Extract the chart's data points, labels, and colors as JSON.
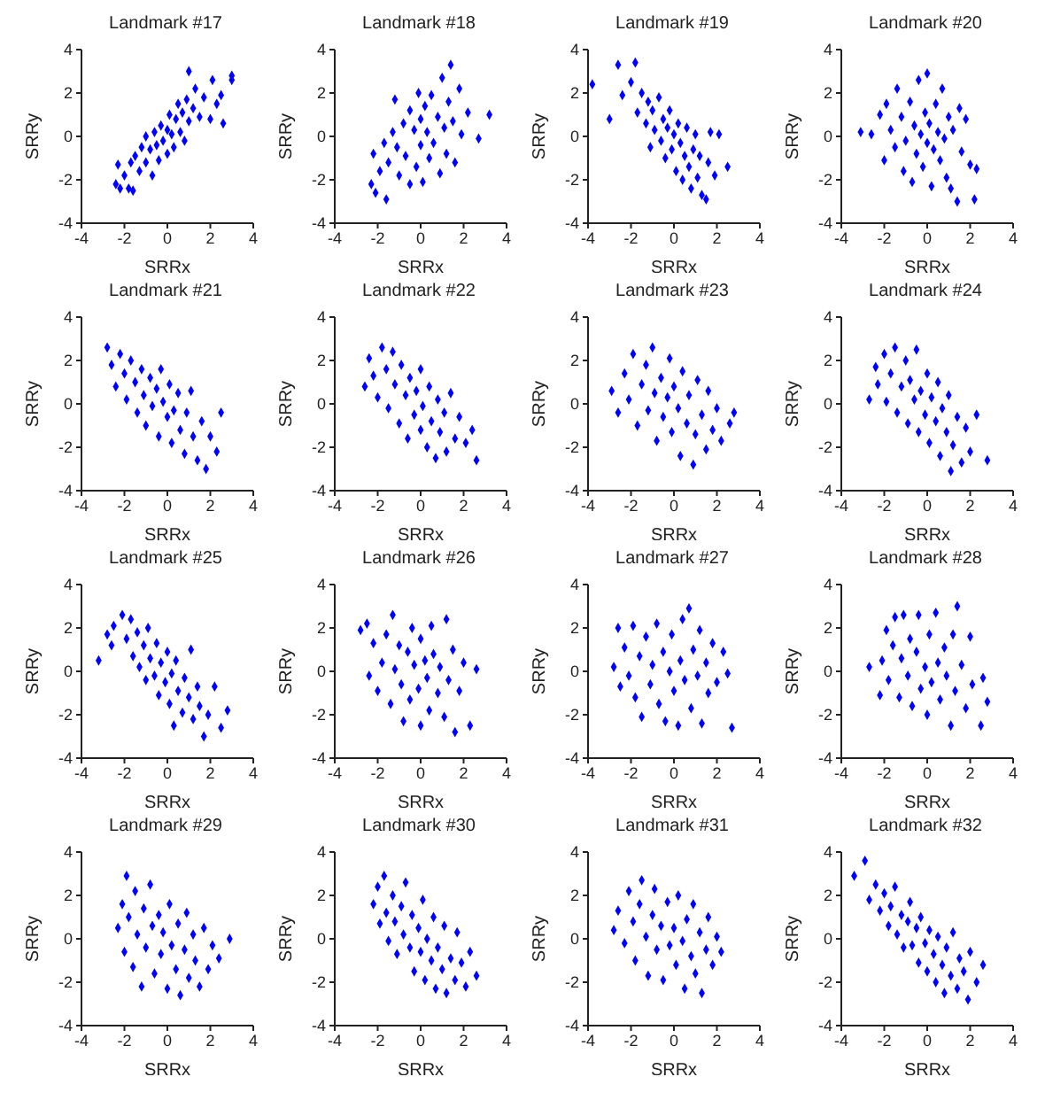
{
  "chart_data": [
    {
      "type": "scatter",
      "title": "Landmark #17",
      "xlabel": "SRRx",
      "ylabel": "SRRy",
      "color": "#0000ff",
      "marker": "diamond",
      "xlim": [
        -4,
        4
      ],
      "ylim": [
        -4,
        4
      ],
      "xticks": [
        -4,
        -2,
        0,
        2,
        4
      ],
      "yticks": [
        -4,
        -2,
        0,
        2,
        4
      ],
      "x": [
        -2.4,
        -2.2,
        -2.3,
        -2,
        -1.8,
        -1.6,
        -1.7,
        -1.5,
        -1.3,
        -1.2,
        -1,
        -1,
        -0.8,
        -0.7,
        -0.6,
        -0.5,
        -0.4,
        -0.3,
        -0.2,
        0,
        0,
        0.1,
        0.2,
        0.3,
        0.4,
        0.5,
        0.6,
        0.7,
        0.8,
        0.9,
        1,
        1,
        1.2,
        1.3,
        1.5,
        1.7,
        2,
        2.1,
        2.3,
        2.5,
        2.6,
        3,
        3
      ],
      "values": [
        -2.2,
        -2.4,
        -1.3,
        -1.8,
        -2.4,
        -2.5,
        -1.2,
        -0.9,
        -1.6,
        -0.5,
        -1.2,
        0,
        -0.6,
        -1.8,
        0.2,
        -0.4,
        -1.1,
        0.5,
        -0.2,
        0.3,
        -0.8,
        1,
        0.1,
        -0.5,
        0.8,
        1.5,
        0.2,
        1.1,
        -0.2,
        1.7,
        3,
        0.7,
        1.3,
        2.2,
        0.9,
        1.8,
        0.8,
        2.6,
        1.5,
        1.9,
        0.6,
        2.6,
        2.8
      ]
    },
    {
      "type": "scatter",
      "title": "Landmark #18",
      "xlabel": "SRRx",
      "ylabel": "SRRy",
      "color": "#0000ff",
      "marker": "diamond",
      "xlim": [
        -4,
        4
      ],
      "ylim": [
        -4,
        4
      ],
      "xticks": [
        -4,
        -2,
        0,
        2,
        4
      ],
      "yticks": [
        -4,
        -2,
        0,
        2,
        4
      ],
      "x": [
        -2.3,
        -2.2,
        -2.1,
        -1.9,
        -1.7,
        -1.6,
        -1.5,
        -1.3,
        -1.2,
        -1.1,
        -1,
        -0.8,
        -0.7,
        -0.5,
        -0.5,
        -0.3,
        -0.2,
        -0.1,
        0,
        0,
        0.1,
        0.2,
        0.3,
        0.4,
        0.5,
        0.6,
        0.8,
        0.9,
        1,
        1.1,
        1.2,
        1.3,
        1.4,
        1.5,
        1.6,
        1.8,
        1.9,
        2.2,
        2.7,
        3.2
      ],
      "values": [
        -2.2,
        -0.8,
        -2.6,
        -1.6,
        -0.3,
        -2.9,
        -1.2,
        0.2,
        1.7,
        -0.5,
        -1.8,
        0.6,
        -0.9,
        1.2,
        -2.2,
        0.3,
        -1.4,
        2,
        0.8,
        -0.4,
        -2.1,
        1.4,
        0.2,
        -1,
        1.9,
        -0.3,
        0.9,
        -1.7,
        2.7,
        0.4,
        -0.8,
        1.6,
        3.3,
        0.7,
        -1.2,
        2.2,
        0.1,
        1.1,
        -0.1,
        1
      ]
    },
    {
      "type": "scatter",
      "title": "Landmark #19",
      "xlabel": "SRRx",
      "ylabel": "SRRy",
      "color": "#0000ff",
      "marker": "diamond",
      "xlim": [
        -4,
        4
      ],
      "ylim": [
        -4,
        4
      ],
      "xticks": [
        -4,
        -2,
        0,
        2,
        4
      ],
      "yticks": [
        -4,
        -2,
        0,
        2,
        4
      ],
      "x": [
        -3.8,
        -3,
        -2.6,
        -2.4,
        -2,
        -1.8,
        -1.7,
        -1.5,
        -1.3,
        -1.2,
        -1.1,
        -1,
        -0.9,
        -0.7,
        -0.6,
        -0.5,
        -0.4,
        -0.3,
        -0.2,
        -0.1,
        0,
        0.1,
        0.2,
        0.3,
        0.4,
        0.5,
        0.6,
        0.7,
        0.8,
        0.9,
        1,
        1.1,
        1.2,
        1.3,
        1.5,
        1.6,
        1.7,
        1.9,
        2.1,
        2.5
      ],
      "values": [
        2.4,
        0.8,
        3.3,
        1.9,
        2.5,
        3.4,
        1.1,
        2,
        0.6,
        1.6,
        -0.5,
        1.2,
        0.3,
        1.8,
        -0.2,
        0.8,
        -1,
        0.4,
        1.2,
        -0.6,
        0.1,
        -1.6,
        0.6,
        -0.3,
        -2,
        -0.9,
        0.4,
        -1.4,
        -2.4,
        -0.6,
        0.1,
        -1.9,
        -0.9,
        -2.7,
        -2.9,
        -1.2,
        0.2,
        -1.8,
        0.1,
        -1.4
      ]
    },
    {
      "type": "scatter",
      "title": "Landmark #20",
      "xlabel": "SRRx",
      "ylabel": "SRRy",
      "color": "#0000ff",
      "marker": "diamond",
      "xlim": [
        -4,
        4
      ],
      "ylim": [
        -4,
        4
      ],
      "xticks": [
        -4,
        -2,
        0,
        2,
        4
      ],
      "yticks": [
        -4,
        -2,
        0,
        2,
        4
      ],
      "x": [
        -3.1,
        -2.6,
        -2.2,
        -2,
        -1.9,
        -1.7,
        -1.5,
        -1.4,
        -1.2,
        -1.1,
        -1,
        -0.8,
        -0.7,
        -0.6,
        -0.5,
        -0.4,
        -0.3,
        -0.2,
        -0.1,
        0,
        0,
        0.1,
        0.2,
        0.3,
        0.4,
        0.5,
        0.6,
        0.7,
        0.8,
        0.9,
        1,
        1.1,
        1.2,
        1.4,
        1.5,
        1.6,
        1.8,
        2,
        2.3,
        2.2
      ],
      "values": [
        0.2,
        0.1,
        1,
        -1.1,
        1.5,
        0.3,
        -0.5,
        2.2,
        0.9,
        -1.6,
        -0.2,
        1.6,
        -2.1,
        0.5,
        -0.8,
        2.6,
        0.1,
        -1.4,
        1.1,
        -0.3,
        2.9,
        0.6,
        -2.3,
        -0.6,
        1.5,
        0.2,
        -1.1,
        2.2,
        -0.1,
        -1.9,
        0.9,
        -2.4,
        0.3,
        -3,
        1.3,
        -0.7,
        0.8,
        -1.3,
        -1.5,
        -2.9
      ]
    },
    {
      "type": "scatter",
      "title": "Landmark #21",
      "xlabel": "SRRx",
      "ylabel": "SRRy",
      "color": "#0000ff",
      "marker": "diamond",
      "xlim": [
        -4,
        4
      ],
      "ylim": [
        -4,
        4
      ],
      "xticks": [
        -4,
        -2,
        0,
        2,
        4
      ],
      "yticks": [
        -4,
        -2,
        0,
        2,
        4
      ],
      "x": [
        -2.8,
        -2.6,
        -2.4,
        -2.2,
        -2,
        -1.9,
        -1.7,
        -1.5,
        -1.4,
        -1.2,
        -1.1,
        -1,
        -0.8,
        -0.7,
        -0.5,
        -0.4,
        -0.3,
        -0.2,
        0,
        0.1,
        0.2,
        0.3,
        0.5,
        0.6,
        0.8,
        0.9,
        1.1,
        1.2,
        1.4,
        1.6,
        1.8,
        2,
        2.3,
        2.5
      ],
      "values": [
        2.6,
        1.8,
        0.8,
        2.3,
        1.4,
        0.2,
        2,
        1,
        -0.4,
        1.6,
        0.4,
        -1,
        1.2,
        -0.1,
        0.7,
        -1.5,
        1.6,
        0.1,
        -0.6,
        0.9,
        -1.8,
        -0.3,
        0.5,
        -1.2,
        -2.3,
        -0.4,
        0.6,
        -1.5,
        -2.6,
        -0.8,
        -3,
        -1.5,
        -2.2,
        -0.4
      ]
    },
    {
      "type": "scatter",
      "title": "Landmark #22",
      "xlabel": "SRRx",
      "ylabel": "SRRy",
      "color": "#0000ff",
      "marker": "diamond",
      "xlim": [
        -4,
        4
      ],
      "ylim": [
        -4,
        4
      ],
      "xticks": [
        -4,
        -2,
        0,
        2,
        4
      ],
      "yticks": [
        -4,
        -2,
        0,
        2,
        4
      ],
      "x": [
        -2.6,
        -2.4,
        -2.2,
        -2,
        -1.8,
        -1.6,
        -1.5,
        -1.3,
        -1.2,
        -1,
        -0.9,
        -0.7,
        -0.6,
        -0.5,
        -0.3,
        -0.2,
        0,
        0,
        0.1,
        0.3,
        0.4,
        0.5,
        0.7,
        0.8,
        0.9,
        1.1,
        1.2,
        1.4,
        1.6,
        1.8,
        2.1,
        2.4,
        2.6
      ],
      "values": [
        0.8,
        2.1,
        1.3,
        0.3,
        2.6,
        1.6,
        -0.2,
        2.4,
        0.9,
        -0.9,
        1.8,
        0.4,
        -1.6,
        1.2,
        -0.5,
        0.6,
        -1.2,
        1.6,
        -0.1,
        -2,
        0.8,
        -0.8,
        -2.5,
        0.2,
        -1.3,
        -0.4,
        -2.2,
        0.5,
        -1.6,
        -0.6,
        -1.8,
        -1.2,
        -2.6
      ]
    },
    {
      "type": "scatter",
      "title": "Landmark #23",
      "xlabel": "SRRx",
      "ylabel": "SRRy",
      "color": "#0000ff",
      "marker": "diamond",
      "xlim": [
        -4,
        4
      ],
      "ylim": [
        -4,
        4
      ],
      "xticks": [
        -4,
        -2,
        0,
        2,
        4
      ],
      "yticks": [
        -4,
        -2,
        0,
        2,
        4
      ],
      "x": [
        -2.9,
        -2.6,
        -2.3,
        -2.1,
        -1.9,
        -1.7,
        -1.5,
        -1.3,
        -1.2,
        -1,
        -0.9,
        -0.8,
        -0.6,
        -0.5,
        -0.3,
        -0.2,
        -0.1,
        0,
        0.2,
        0.3,
        0.4,
        0.6,
        0.7,
        0.9,
        1,
        1.1,
        1.3,
        1.5,
        1.6,
        1.8,
        2,
        2.2,
        2.6,
        2.8
      ],
      "values": [
        0.6,
        -0.4,
        1.4,
        0.2,
        2.3,
        -1,
        0.9,
        1.8,
        -0.3,
        2.6,
        0.5,
        -1.7,
        1.2,
        -0.6,
        0.3,
        2.1,
        -1.3,
        0.8,
        -0.2,
        -2.4,
        1.5,
        -0.9,
        0.4,
        -2.8,
        -1.4,
        1.1,
        -0.5,
        -2.1,
        0.6,
        -1.2,
        -0.2,
        -1.7,
        -0.9,
        -0.4
      ]
    },
    {
      "type": "scatter",
      "title": "Landmark #24",
      "xlabel": "SRRx",
      "ylabel": "SRRy",
      "color": "#0000ff",
      "marker": "diamond",
      "xlim": [
        -4,
        4
      ],
      "ylim": [
        -4,
        4
      ],
      "xticks": [
        -4,
        -2,
        0,
        2,
        4
      ],
      "yticks": [
        -4,
        -2,
        0,
        2,
        4
      ],
      "x": [
        -2.7,
        -2.4,
        -2.3,
        -2,
        -1.9,
        -1.7,
        -1.5,
        -1.4,
        -1.2,
        -1,
        -0.9,
        -0.8,
        -0.6,
        -0.5,
        -0.4,
        -0.3,
        -0.1,
        0,
        0.1,
        0.2,
        0.4,
        0.5,
        0.6,
        0.7,
        0.9,
        1,
        1.1,
        1.2,
        1.4,
        1.6,
        1.8,
        2,
        2.3,
        2.8
      ],
      "values": [
        0.2,
        1.7,
        0.9,
        2.3,
        0.1,
        1.4,
        2.6,
        -0.4,
        0.8,
        2,
        -0.9,
        1.1,
        0.2,
        2.5,
        -1.3,
        0.6,
        -0.5,
        1.4,
        -1.8,
        0.3,
        -0.8,
        1,
        -2.4,
        -0.2,
        -1.3,
        0.4,
        -3.1,
        -1.9,
        -0.6,
        -2.7,
        -1.1,
        -2.2,
        -0.5,
        -2.6
      ]
    },
    {
      "type": "scatter",
      "title": "Landmark #25",
      "xlabel": "SRRx",
      "ylabel": "SRRy",
      "color": "#0000ff",
      "marker": "diamond",
      "xlim": [
        -4,
        4
      ],
      "ylim": [
        -4,
        4
      ],
      "xticks": [
        -4,
        -2,
        0,
        2,
        4
      ],
      "yticks": [
        -4,
        -2,
        0,
        2,
        4
      ],
      "x": [
        -3.2,
        -2.8,
        -2.6,
        -2.5,
        -2.1,
        -1.9,
        -1.7,
        -1.6,
        -1.4,
        -1.3,
        -1.1,
        -1,
        -0.9,
        -0.8,
        -0.6,
        -0.5,
        -0.4,
        -0.3,
        -0.1,
        0,
        0.1,
        0.2,
        0.3,
        0.4,
        0.5,
        0.7,
        0.8,
        1,
        1.1,
        1.2,
        1.4,
        1.5,
        1.7,
        1.9,
        2.2,
        2.5,
        2.8
      ],
      "values": [
        0.5,
        1.7,
        1.2,
        2.1,
        2.6,
        1.5,
        2.4,
        0.7,
        1.8,
        0.2,
        1.2,
        -0.4,
        2,
        0.6,
        -0.2,
        1.3,
        -1.1,
        0.4,
        -0.5,
        0.9,
        -1.5,
        -0.1,
        -2.5,
        0.5,
        -0.9,
        -1.9,
        -0.3,
        -1.2,
        1,
        -2.2,
        -0.7,
        -1.6,
        -3,
        -2,
        -0.7,
        -2.6,
        -1.8
      ]
    },
    {
      "type": "scatter",
      "title": "Landmark #26",
      "xlabel": "SRRx",
      "ylabel": "SRRy",
      "color": "#0000ff",
      "marker": "diamond",
      "xlim": [
        -4,
        4
      ],
      "ylim": [
        -4,
        4
      ],
      "xticks": [
        -4,
        -2,
        0,
        2,
        4
      ],
      "yticks": [
        -4,
        -2,
        0,
        2,
        4
      ],
      "x": [
        -2.8,
        -2.5,
        -2.4,
        -2.2,
        -2,
        -1.8,
        -1.6,
        -1.4,
        -1.3,
        -1.2,
        -1,
        -0.9,
        -0.8,
        -0.6,
        -0.5,
        -0.4,
        -0.3,
        -0.1,
        0,
        0,
        0.2,
        0.3,
        0.4,
        0.5,
        0.6,
        0.8,
        0.9,
        1.1,
        1.2,
        1.3,
        1.5,
        1.6,
        1.8,
        2,
        2.3,
        2.6
      ],
      "values": [
        1.9,
        2.2,
        -0.2,
        1.3,
        -0.9,
        0.4,
        1.7,
        -1.5,
        2.6,
        0.1,
        1.2,
        -0.6,
        -2.3,
        0.9,
        -1.3,
        2,
        0.3,
        -0.8,
        1.5,
        -2.5,
        0.5,
        -0.3,
        -1.8,
        2.1,
        0.8,
        -1,
        0.2,
        -2.1,
        2.4,
        -0.4,
        1,
        -2.8,
        -0.9,
        0.4,
        -2.5,
        0.1
      ]
    },
    {
      "type": "scatter",
      "title": "Landmark #27",
      "xlabel": "SRRx",
      "ylabel": "SRRy",
      "color": "#0000ff",
      "marker": "diamond",
      "xlim": [
        -4,
        4
      ],
      "ylim": [
        -4,
        4
      ],
      "xticks": [
        -4,
        -2,
        0,
        2,
        4
      ],
      "yticks": [
        -4,
        -2,
        0,
        2,
        4
      ],
      "x": [
        -2.8,
        -2.6,
        -2.5,
        -2.3,
        -2.1,
        -1.9,
        -1.8,
        -1.6,
        -1.5,
        -1.3,
        -1.1,
        -1,
        -0.8,
        -0.7,
        -0.5,
        -0.4,
        -0.2,
        -0.1,
        0,
        0.2,
        0.3,
        0.4,
        0.5,
        0.7,
        0.8,
        0.9,
        1.1,
        1.2,
        1.3,
        1.5,
        1.6,
        1.8,
        2,
        2.3,
        2.5,
        2.7
      ],
      "values": [
        0.2,
        2,
        -0.7,
        1.1,
        -0.2,
        2.1,
        -1.2,
        0.7,
        -2.1,
        1.6,
        -0.6,
        0.3,
        2.2,
        -1.5,
        0.9,
        -2.3,
        0,
        1.7,
        -0.9,
        -2.5,
        0.5,
        2.4,
        -0.4,
        2.9,
        -1.7,
        1,
        -0.2,
        1.9,
        -2.4,
        0.4,
        -1,
        1.3,
        -0.5,
        0.9,
        -0.1,
        -2.6
      ]
    },
    {
      "type": "scatter",
      "title": "Landmark #28",
      "xlabel": "SRRx",
      "ylabel": "SRRy",
      "color": "#0000ff",
      "marker": "diamond",
      "xlim": [
        -4,
        4
      ],
      "ylim": [
        -4,
        4
      ],
      "xticks": [
        -4,
        -2,
        0,
        2,
        4
      ],
      "yticks": [
        -4,
        -2,
        0,
        2,
        4
      ],
      "x": [
        -2.7,
        -2.2,
        -2.1,
        -1.9,
        -1.8,
        -1.6,
        -1.5,
        -1.3,
        -1.2,
        -1.1,
        -0.9,
        -0.8,
        -0.7,
        -0.5,
        -0.4,
        -0.3,
        -0.1,
        0,
        0.1,
        0.2,
        0.4,
        0.5,
        0.6,
        0.8,
        0.9,
        1.1,
        1.2,
        1.3,
        1.4,
        1.6,
        1.8,
        2,
        2.1,
        2.5,
        2.6,
        2.8
      ],
      "values": [
        0.2,
        -1.1,
        0.5,
        1.9,
        -0.4,
        1.2,
        2.5,
        -1.2,
        0.6,
        2.6,
        -0.2,
        1.5,
        -1.6,
        0.9,
        2.6,
        -0.8,
        0.2,
        -2,
        1.7,
        -0.5,
        2.7,
        0.4,
        -1.3,
        1.1,
        -0.2,
        -2.5,
        1.7,
        -0.9,
        3,
        0.3,
        -1.7,
        1.6,
        -0.6,
        -2.5,
        -0.3,
        -1.4
      ]
    },
    {
      "type": "scatter",
      "title": "Landmark #29",
      "xlabel": "SRRx",
      "ylabel": "SRRy",
      "color": "#0000ff",
      "marker": "diamond",
      "xlim": [
        -4,
        4
      ],
      "ylim": [
        -4,
        4
      ],
      "xticks": [
        -4,
        -2,
        0,
        2,
        4
      ],
      "yticks": [
        -4,
        -2,
        0,
        2,
        4
      ],
      "x": [
        -2.3,
        -2.1,
        -2,
        -1.9,
        -1.8,
        -1.6,
        -1.5,
        -1.4,
        -1.2,
        -1.1,
        -1,
        -0.8,
        -0.7,
        -0.6,
        -0.4,
        -0.3,
        -0.2,
        0,
        0.1,
        0.2,
        0.4,
        0.5,
        0.6,
        0.8,
        0.9,
        1,
        1.2,
        1.3,
        1.5,
        1.7,
        1.9,
        2.1,
        2.4,
        2.9
      ],
      "values": [
        0.5,
        1.6,
        -0.6,
        2.9,
        1,
        -1.3,
        2.2,
        0.2,
        -2.2,
        1.4,
        -0.4,
        2.5,
        0.6,
        -1.6,
        1.1,
        -0.7,
        0.3,
        -2.3,
        1.6,
        -0.3,
        -1.4,
        0.7,
        -2.6,
        -0.5,
        1.2,
        -1.8,
        0.2,
        -1,
        -2.2,
        0.5,
        -1.4,
        -0.3,
        -0.9,
        0
      ]
    },
    {
      "type": "scatter",
      "title": "Landmark #30",
      "xlabel": "SRRx",
      "ylabel": "SRRy",
      "color": "#0000ff",
      "marker": "diamond",
      "xlim": [
        -4,
        4
      ],
      "ylim": [
        -4,
        4
      ],
      "xticks": [
        -4,
        -2,
        0,
        2,
        4
      ],
      "yticks": [
        -4,
        -2,
        0,
        2,
        4
      ],
      "x": [
        -2.2,
        -2,
        -1.9,
        -1.7,
        -1.6,
        -1.5,
        -1.3,
        -1.2,
        -1.1,
        -0.9,
        -0.8,
        -0.7,
        -0.5,
        -0.4,
        -0.3,
        -0.1,
        0,
        0.1,
        0.2,
        0.3,
        0.5,
        0.6,
        0.7,
        0.8,
        1,
        1.1,
        1.2,
        1.4,
        1.6,
        1.7,
        1.9,
        2.1,
        2.3,
        2.6
      ],
      "values": [
        1.6,
        2.4,
        0.7,
        2.9,
        1.2,
        -0.1,
        2,
        0.8,
        -0.7,
        1.5,
        0.2,
        2.6,
        -0.4,
        1.1,
        -1.5,
        0.5,
        -0.6,
        1.8,
        -1.9,
        0,
        -1,
        1,
        -2.3,
        -0.4,
        -1.4,
        0.6,
        -2.5,
        -0.9,
        -1.9,
        0.3,
        -1.1,
        -2.2,
        -0.6,
        -1.7
      ]
    },
    {
      "type": "scatter",
      "title": "Landmark #31",
      "xlabel": "SRRx",
      "ylabel": "SRRy",
      "color": "#0000ff",
      "marker": "diamond",
      "xlim": [
        -4,
        4
      ],
      "ylim": [
        -4,
        4
      ],
      "xticks": [
        -4,
        -2,
        0,
        2,
        4
      ],
      "yticks": [
        -4,
        -2,
        0,
        2,
        4
      ],
      "x": [
        -2.8,
        -2.6,
        -2.3,
        -2.1,
        -1.9,
        -1.8,
        -1.6,
        -1.5,
        -1.3,
        -1.2,
        -1,
        -0.9,
        -0.8,
        -0.6,
        -0.5,
        -0.3,
        -0.2,
        0,
        0.1,
        0.2,
        0.4,
        0.5,
        0.6,
        0.8,
        0.9,
        1,
        1.2,
        1.3,
        1.5,
        1.6,
        1.8,
        2,
        2.2
      ],
      "values": [
        0.4,
        1.3,
        -0.2,
        2.2,
        0.8,
        -1,
        1.6,
        2.7,
        0.1,
        -1.7,
        1.1,
        2.3,
        -0.5,
        0.6,
        -1.9,
        1.7,
        -0.3,
        0.5,
        -1.2,
        2,
        -0.1,
        -2.3,
        0.9,
        -0.8,
        1.6,
        -1.6,
        0.3,
        -2.5,
        -0.5,
        1,
        -1.2,
        0.1,
        -0.6
      ]
    },
    {
      "type": "scatter",
      "title": "Landmark #32",
      "xlabel": "SRRx",
      "ylabel": "SRRy",
      "color": "#0000ff",
      "marker": "diamond",
      "xlim": [
        -4,
        4
      ],
      "ylim": [
        -4,
        4
      ],
      "xticks": [
        -4,
        -2,
        0,
        2,
        4
      ],
      "yticks": [
        -4,
        -2,
        0,
        2,
        4
      ],
      "x": [
        -3.4,
        -2.9,
        -2.7,
        -2.4,
        -2.2,
        -2,
        -1.8,
        -1.7,
        -1.5,
        -1.4,
        -1.2,
        -1.1,
        -0.9,
        -0.8,
        -0.7,
        -0.5,
        -0.4,
        -0.3,
        -0.1,
        0,
        0.1,
        0.3,
        0.4,
        0.5,
        0.7,
        0.8,
        0.9,
        1.1,
        1.2,
        1.4,
        1.5,
        1.7,
        1.9,
        2,
        2.3,
        2.6
      ],
      "values": [
        2.9,
        3.6,
        1.8,
        2.5,
        1.3,
        2.1,
        0.6,
        1.5,
        2.4,
        0.2,
        1.1,
        -0.4,
        0.8,
        1.7,
        -0.3,
        0.5,
        -1.1,
        1,
        -0.2,
        -1.5,
        0.4,
        -0.7,
        -2,
        0.1,
        -1.2,
        -2.5,
        -0.4,
        -1.7,
        0.3,
        -2.3,
        -0.9,
        -1.5,
        -2.8,
        -0.6,
        -2,
        -1.2
      ]
    }
  ]
}
